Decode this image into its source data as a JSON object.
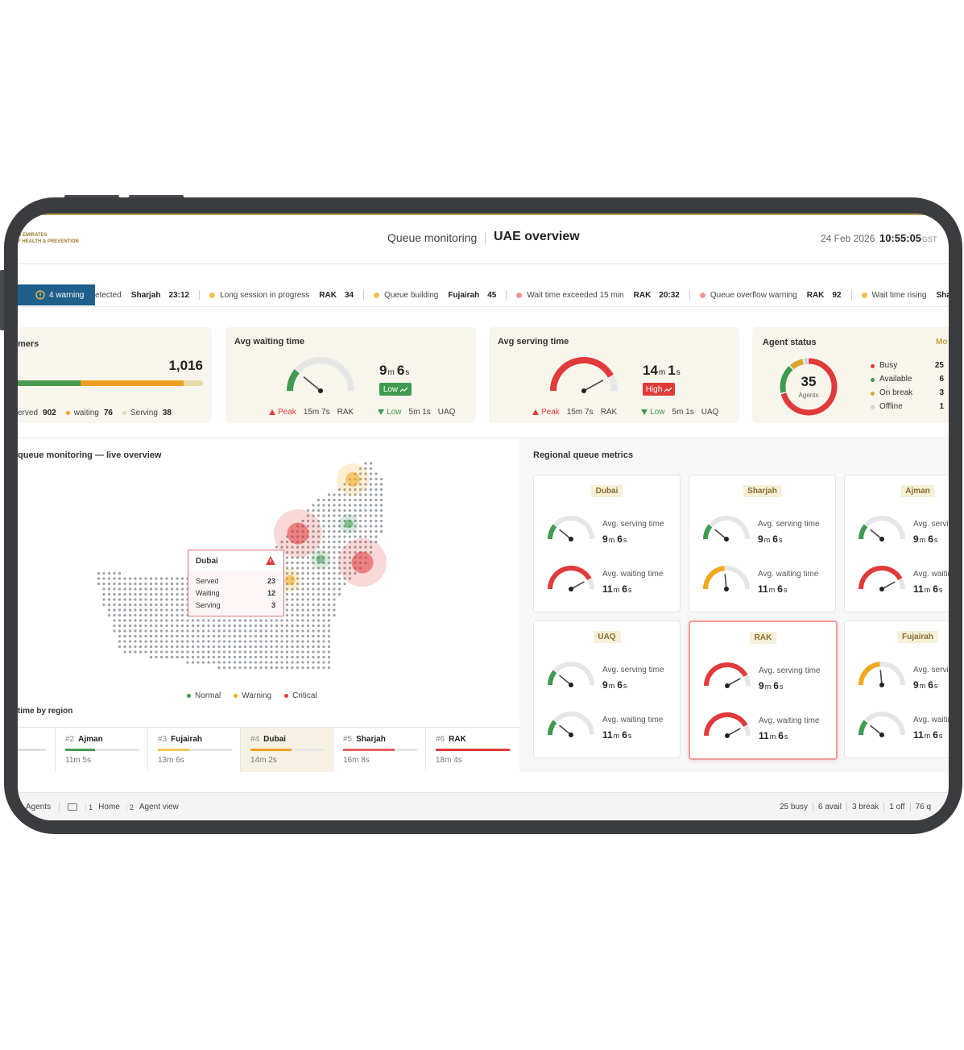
{
  "header": {
    "logo": [
      "B EMIRATES",
      "F HEALTH & PREVENTION"
    ],
    "section": "Queue monitoring",
    "title": "UAE overview",
    "date": "24 Feb 2026",
    "time": "10:55:05",
    "timezone": "GST"
  },
  "ticker": {
    "badge": "4 warning",
    "items": [
      {
        "text": "etected",
        "region": "Sharjah",
        "value": "23:12"
      },
      {
        "text": "Long session in progress",
        "region": "RAK",
        "value": "34",
        "color": "#f2c14e"
      },
      {
        "text": "Queue building",
        "region": "Fujairah",
        "value": "45",
        "color": "#f2c14e"
      },
      {
        "text": "Wait time exceeded 15 min",
        "region": "RAK",
        "value": "20:32",
        "color": "#f29494"
      },
      {
        "text": "Queue overflow warning",
        "region": "RAK",
        "value": "92",
        "color": "#f29494"
      },
      {
        "text": "Wait time rising",
        "region": "Sharjah",
        "color": "#f2c14e"
      }
    ]
  },
  "units": {
    "m": "m",
    "s": "s"
  },
  "kpis": {
    "customers": {
      "title": "mers",
      "total": "1,016",
      "segments": [
        {
          "label": "erved",
          "value": "902",
          "color": "#4a9a4f"
        },
        {
          "label": "waiting",
          "value": "76",
          "color": "#f0a020"
        },
        {
          "label": "Serving",
          "value": "38",
          "color": "#e8d9a8"
        }
      ]
    },
    "waiting": {
      "title": "Avg waiting time",
      "minutes": "9",
      "seconds": "6",
      "badge": "Low",
      "color": "#3f9b4f",
      "peak": {
        "label": "Peak",
        "value": "15m 7s",
        "region": "RAK"
      },
      "low": {
        "label": "Low",
        "value": "5m 1s",
        "region": "UAQ"
      }
    },
    "serving": {
      "title": "Avg serving time",
      "minutes": "14",
      "seconds": "1",
      "badge": "High",
      "color": "#e03a3a",
      "peak": {
        "label": "Peak",
        "value": "15m 7s",
        "region": "RAK"
      },
      "low": {
        "label": "Low",
        "value": "5m 1s",
        "region": "UAQ"
      }
    },
    "agents": {
      "title": "Agent status",
      "link": "Mo",
      "total": "35",
      "total_label": "Agents",
      "statuses": [
        {
          "label": "Busy",
          "value": 25,
          "color": "#e03a3a"
        },
        {
          "label": "Available",
          "value": 6,
          "color": "#3f9b4f"
        },
        {
          "label": "On break",
          "value": 3,
          "color": "#d9a52b"
        },
        {
          "label": "Offline",
          "value": 1,
          "color": "#c9d3e0"
        }
      ]
    }
  },
  "map": {
    "title": "queue monitoring — live overview",
    "tooltip": {
      "region": "Dubai",
      "rows": [
        {
          "label": "Served",
          "value": "23"
        },
        {
          "label": "Waiting",
          "value": "12"
        },
        {
          "label": "Serving",
          "value": "3"
        }
      ]
    },
    "legend": [
      {
        "label": "Normal",
        "color": "#3f9b4f"
      },
      {
        "label": "Warning",
        "color": "#f0a81c"
      },
      {
        "label": "Critical",
        "color": "#e03a3a"
      }
    ],
    "ranking_title": "time by region",
    "ranking": [
      {
        "rank": "#2",
        "name": "Ajman",
        "time": "11m 5s",
        "color": "#4a9a4f"
      },
      {
        "rank": "#3",
        "name": "Fujairah",
        "time": "13m 6s",
        "color": "#f2c94c"
      },
      {
        "rank": "#4",
        "name": "Dubai",
        "time": "14m 2s",
        "color": "#f0a020"
      },
      {
        "rank": "#5",
        "name": "Sharjah",
        "time": "16m 8s",
        "color": "#e86060"
      },
      {
        "rank": "#6",
        "name": "RAK",
        "time": "18m 4s",
        "color": "#e03a3a"
      }
    ]
  },
  "regional": {
    "title": "Regional queue metrics",
    "serving_label": "Avg. serving time",
    "waiting_label": "Avg. waiting time",
    "cards": [
      {
        "name": "Dubai",
        "serving": {
          "minutes": "9",
          "seconds": "6",
          "color": "#3f9b4f"
        },
        "waiting": {
          "minutes": "11",
          "seconds": "6",
          "color": "#e03a3a"
        }
      },
      {
        "name": "Sharjah",
        "serving": {
          "minutes": "9",
          "seconds": "6",
          "color": "#3f9b4f"
        },
        "waiting": {
          "minutes": "11",
          "seconds": "6",
          "color": "#f0a81c"
        }
      },
      {
        "name": "Ajman",
        "serving": {
          "minutes": "9",
          "seconds": "6",
          "color": "#3f9b4f"
        },
        "waiting": {
          "minutes": "11",
          "seconds": "6",
          "color": "#e03a3a"
        }
      },
      {
        "name": "UAQ",
        "serving": {
          "minutes": "9",
          "seconds": "6",
          "color": "#3f9b4f"
        },
        "waiting": {
          "minutes": "11",
          "seconds": "6",
          "color": "#3f9b4f"
        }
      },
      {
        "name": "RAK",
        "serving": {
          "minutes": "9",
          "seconds": "6",
          "color": "#e03a3a"
        },
        "waiting": {
          "minutes": "11",
          "seconds": "6",
          "color": "#e03a3a"
        }
      },
      {
        "name": "Fujairah",
        "serving": {
          "minutes": "9",
          "seconds": "6",
          "color": "#f0a81c"
        },
        "waiting": {
          "minutes": "11",
          "seconds": "6",
          "color": "#3f9b4f"
        }
      }
    ]
  },
  "footer": {
    "left": {
      "agents": "Agents",
      "shortcuts": [
        {
          "key": "1",
          "label": "Home"
        },
        {
          "key": "2",
          "label": "Agent view"
        }
      ]
    },
    "right": [
      "25 busy",
      "6 avail",
      "3 break",
      "1 off",
      "76 q"
    ]
  }
}
